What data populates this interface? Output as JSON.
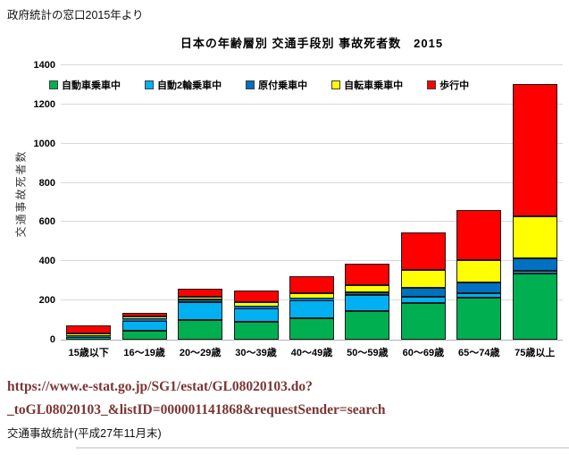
{
  "page": {
    "source_note": "政府統計の窓口2015年より",
    "url_line1": "https://www.e-stat.go.jp/SG1/estat/GL08020103.do?",
    "url_line2": "_toGL08020103_&listID=000001141868&requestSender=search",
    "link_color": "#7b3535",
    "footer_caption": "交通事故統計(平成27年11月末)"
  },
  "chart_data": {
    "type": "bar",
    "stacked": true,
    "title": "日本の年齢層別 交通手段別 事故死者数　2015",
    "ylabel": "交通事故死者数",
    "xlabel": "",
    "ylim": [
      0,
      1400
    ],
    "ytick_interval": 200,
    "grid": true,
    "legend_position": "top",
    "categories": [
      "15歳以下",
      "16〜19歳",
      "20〜29歳",
      "30〜39歳",
      "40〜49歳",
      "50〜59歳",
      "60〜69歳",
      "65〜74歳",
      "75歳以上"
    ],
    "series": [
      {
        "name": "自動車乗車中",
        "color": "#00B050",
        "values": [
          14,
          46,
          99,
          91,
          110,
          145,
          187,
          213,
          339
        ]
      },
      {
        "name": "自動2輪乗車中",
        "color": "#00B0F0",
        "values": [
          1,
          49,
          91,
          67,
          91,
          84,
          33,
          23,
          11
        ]
      },
      {
        "name": "原付乗車中",
        "color": "#0070C0",
        "values": [
          4,
          9,
          14,
          9,
          8,
          11,
          46,
          58,
          65
        ]
      },
      {
        "name": "自転車乗車中",
        "color": "#FFFF00",
        "values": [
          13,
          14,
          17,
          23,
          27,
          38,
          91,
          110,
          216
        ]
      },
      {
        "name": "歩行中",
        "color": "#FF0000",
        "values": [
          40,
          20,
          41,
          61,
          87,
          111,
          190,
          256,
          673
        ]
      }
    ],
    "totals": [
      72,
      138,
      262,
      251,
      323,
      389,
      547,
      660,
      1304
    ]
  }
}
